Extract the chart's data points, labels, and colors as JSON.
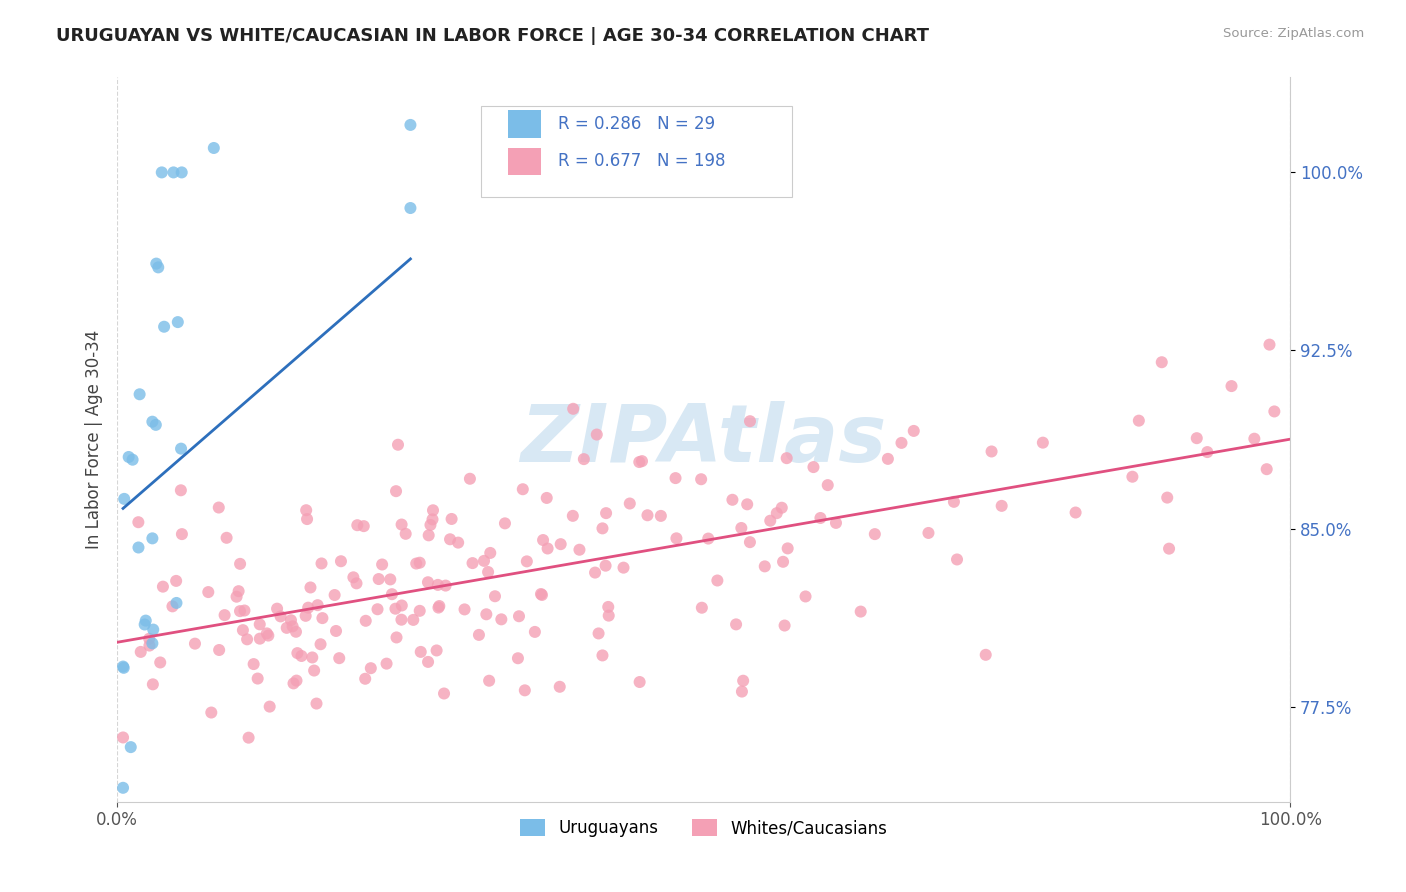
{
  "title": "URUGUAYAN VS WHITE/CAUCASIAN IN LABOR FORCE | AGE 30-34 CORRELATION CHART",
  "source": "Source: ZipAtlas.com",
  "ylabel": "In Labor Force | Age 30-34",
  "x_min": 0.0,
  "x_max": 1.0,
  "y_min": 0.735,
  "y_max": 1.04,
  "y_tick_values_right": [
    0.775,
    0.85,
    0.925,
    1.0
  ],
  "legend_label1": "Uruguayans",
  "legend_label2": "Whites/Caucasians",
  "R1": 0.286,
  "N1": 29,
  "R2": 0.677,
  "N2": 198,
  "color_blue": "#7bbde8",
  "color_pink": "#f4a0b5",
  "color_blue_line": "#2d6fbc",
  "color_pink_line": "#e05080",
  "color_text_blue": "#4472c4",
  "watermark_text": "ZIPAtlas",
  "watermark_color": "#d8e8f4",
  "background_color": "#ffffff",
  "grid_color": "#cccccc",
  "title_color": "#222222"
}
